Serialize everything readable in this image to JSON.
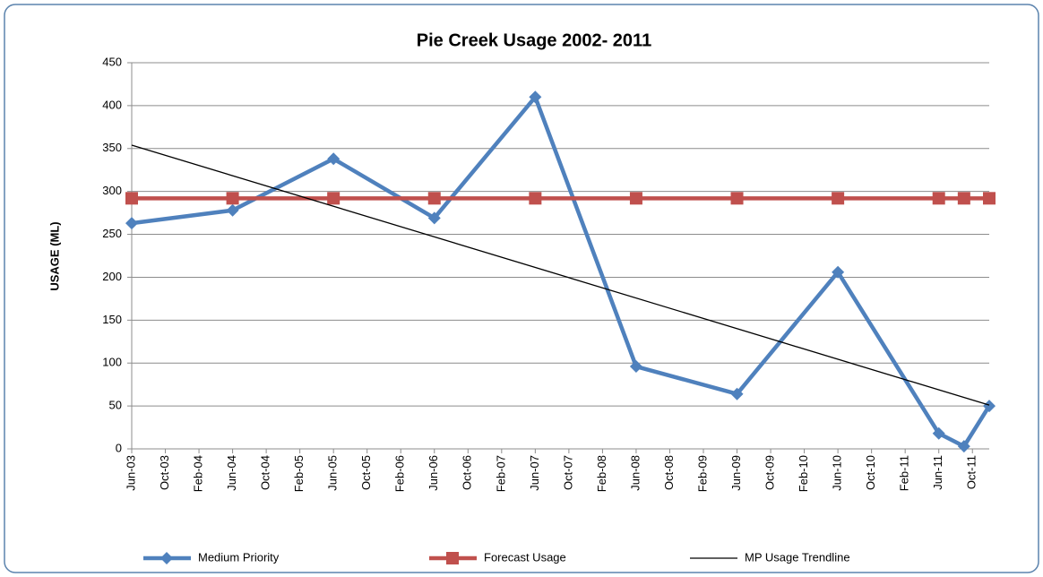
{
  "chart_data": {
    "type": "line",
    "title": "Pie Creek Usage 2002- 2011",
    "y_label": "USAGE (ML)",
    "xlim": [
      "Jun-03",
      "Dec-11"
    ],
    "xticks": [
      "Jun-03",
      "Oct-03",
      "Feb-04",
      "Jun-04",
      "Oct-04",
      "Feb-05",
      "Jun-05",
      "Oct-05",
      "Feb-06",
      "Jun-06",
      "Oct-06",
      "Feb-07",
      "Jun-07",
      "Oct-07",
      "Feb-08",
      "Jun-08",
      "Oct-08",
      "Feb-09",
      "Jun-09",
      "Oct-09",
      "Feb-10",
      "Jun-10",
      "Oct-10",
      "Feb-11",
      "Jun-11",
      "Oct-11"
    ],
    "ylim": [
      0,
      450
    ],
    "yticks": [
      0,
      50,
      100,
      150,
      200,
      250,
      300,
      350,
      400,
      450
    ],
    "grid": true,
    "legend": "bottom",
    "series": [
      {
        "name": "Medium Priority",
        "color": "#4f81bd",
        "marker": "diamond",
        "x": [
          "Jun-03",
          "Jun-04",
          "Jun-05",
          "Jun-06",
          "Jun-07",
          "Jun-08",
          "Jun-09",
          "Jun-10",
          "Jun-11",
          "Sep-11",
          "Dec-11"
        ],
        "values": [
          263,
          278,
          338,
          269,
          410,
          96,
          64,
          206,
          18,
          3,
          50
        ]
      },
      {
        "name": "Forecast Usage",
        "color": "#c0504d",
        "marker": "square",
        "x": [
          "Jun-03",
          "Jun-04",
          "Jun-05",
          "Jun-06",
          "Jun-07",
          "Jun-08",
          "Jun-09",
          "Jun-10",
          "Jun-11",
          "Sep-11",
          "Dec-11"
        ],
        "values": [
          292,
          292,
          292,
          292,
          292,
          292,
          292,
          292,
          292,
          292,
          292
        ]
      },
      {
        "name": "MP Usage Trendline",
        "color": "#000000",
        "marker": "none",
        "x": [
          "Jun-03",
          "Dec-11"
        ],
        "values": [
          354,
          51
        ]
      }
    ]
  }
}
